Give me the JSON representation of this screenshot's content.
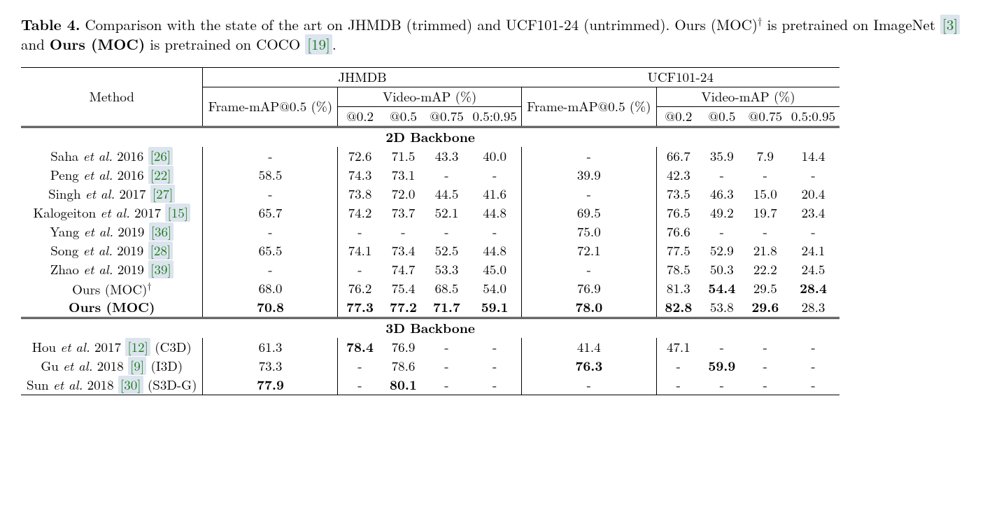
{
  "caption": {
    "table_label": "Table 4.",
    "text_1": " Comparison with the state of the art on JHMDB (trimmed) and UCF101-24 (untrimmed). Ours (MOC)",
    "dagger": "†",
    "text_2": " is pretrained on ImageNet ",
    "cite_1": "[3]",
    "text_3": " and ",
    "ours_bold": "Ours (MOC)",
    "text_4": " is pretrained on COCO ",
    "cite_2": "[19]",
    "text_5": "."
  },
  "headers": {
    "method": "Method",
    "jhmdb": "JHMDB",
    "ucf": "UCF101-24",
    "frame_map": "Frame-mAP@0.5 (%)",
    "video_map": "Video-mAP (%)",
    "c02": "@0.2",
    "c05": "@0.5",
    "c075": "@0.75",
    "c095": "0.5:0.95"
  },
  "sections": {
    "s2d": "2D Backbone",
    "s3d": "3D Backbone"
  },
  "methods": {
    "saha": {
      "pre": "Saha ",
      "etal": "et al.",
      "post": " 2016  ",
      "cite": "[26]"
    },
    "peng": {
      "pre": "Peng ",
      "etal": "et al.",
      "post": " 2016 ",
      "cite": "[22]"
    },
    "singh": {
      "pre": "Singh ",
      "etal": "et al.",
      "post": " 2017 ",
      "cite": "[27]"
    },
    "kalo": {
      "pre": "Kalogeiton ",
      "etal": "et al.",
      "post": " 2017 ",
      "cite": "[15]"
    },
    "yang": {
      "pre": "Yang ",
      "etal": "et al.",
      "post": " 2019 ",
      "cite": "[36]"
    },
    "song": {
      "pre": "Song ",
      "etal": "et al.",
      "post": " 2019 ",
      "cite": "[28]"
    },
    "zhao": {
      "pre": "Zhao ",
      "etal": "et al.",
      "post": " 2019 ",
      "cite": "[39]"
    },
    "ours_d": {
      "pre": "Ours (MOC)",
      "sup": "†"
    },
    "ours": {
      "pre": "Ours (MOC)"
    },
    "hou": {
      "pre": "Hou ",
      "etal": "et al.",
      "post": " 2017 ",
      "cite": "[12]",
      "suffix": " (C3D)"
    },
    "gu": {
      "pre": "Gu ",
      "etal": "et al.",
      "post": " 2018 ",
      "cite": "[9]",
      "suffix": " (I3D)"
    },
    "sun": {
      "pre": "Sun ",
      "etal": "et al.",
      "post": " 2018 ",
      "cite": "[30]",
      "suffix": " (S3D-G)"
    }
  },
  "rows": {
    "saha": {
      "jf": "-",
      "j02": "72.6",
      "j05": "71.5",
      "j075": "43.3",
      "j095": "40.0",
      "uf": "-",
      "u02": "66.7",
      "u05": "35.9",
      "u075": "7.9",
      "u095": "14.4"
    },
    "peng": {
      "jf": "58.5",
      "j02": "74.3",
      "j05": "73.1",
      "j075": "-",
      "j095": "-",
      "uf": "39.9",
      "u02": "42.3",
      "u05": "-",
      "u075": "-",
      "u095": "-"
    },
    "singh": {
      "jf": "-",
      "j02": "73.8",
      "j05": "72.0",
      "j075": "44.5",
      "j095": "41.6",
      "uf": "-",
      "u02": "73.5",
      "u05": "46.3",
      "u075": "15.0",
      "u095": "20.4"
    },
    "kalo": {
      "jf": "65.7",
      "j02": "74.2",
      "j05": "73.7",
      "j075": "52.1",
      "j095": "44.8",
      "uf": "69.5",
      "u02": "76.5",
      "u05": "49.2",
      "u075": "19.7",
      "u095": "23.4"
    },
    "yang": {
      "jf": "-",
      "j02": "-",
      "j05": "-",
      "j075": "-",
      "j095": "-",
      "uf": "75.0",
      "u02": "76.6",
      "u05": "-",
      "u075": "-",
      "u095": "-"
    },
    "song": {
      "jf": "65.5",
      "j02": "74.1",
      "j05": "73.4",
      "j075": "52.5",
      "j095": "44.8",
      "uf": "72.1",
      "u02": "77.5",
      "u05": "52.9",
      "u075": "21.8",
      "u095": "24.1"
    },
    "zhao": {
      "jf": "-",
      "j02": "-",
      "j05": "74.7",
      "j075": "53.3",
      "j095": "45.0",
      "uf": "-",
      "u02": "78.5",
      "u05": "50.3",
      "u075": "22.2",
      "u095": "24.5"
    },
    "ours_d": {
      "jf": "68.0",
      "j02": "76.2",
      "j05": "75.4",
      "j075": "68.5",
      "j095": "54.0",
      "uf": "76.9",
      "u02": "81.3",
      "u05": "54.4",
      "u075": "29.5",
      "u095": "28.4"
    },
    "ours": {
      "jf": "70.8",
      "j02": "77.3",
      "j05": "77.2",
      "j075": "71.7",
      "j095": "59.1",
      "uf": "78.0",
      "u02": "82.8",
      "u05": "53.8",
      "u075": "29.6",
      "u095": "28.3"
    },
    "hou": {
      "jf": "61.3",
      "j02": "78.4",
      "j05": "76.9",
      "j075": "-",
      "j095": "-",
      "uf": "41.4",
      "u02": "47.1",
      "u05": "-",
      "u075": "-",
      "u095": "-"
    },
    "gu": {
      "jf": "73.3",
      "j02": "-",
      "j05": "78.6",
      "j075": "-",
      "j095": "-",
      "uf": "76.3",
      "u02": "-",
      "u05": "59.9",
      "u075": "-",
      "u095": "-"
    },
    "sun": {
      "jf": "77.9",
      "j02": "-",
      "j05": "80.1",
      "j075": "-",
      "j095": "-",
      "uf": "-",
      "u02": "-",
      "u05": "-",
      "u075": "-",
      "u095": "-"
    }
  },
  "bold_map": {
    "ours": {
      "jf": 1,
      "j02": 1,
      "j05": 1,
      "j075": 1,
      "j095": 1,
      "uf": 1,
      "u02": 1,
      "u075": 1
    },
    "ours_d": {
      "u05": 1,
      "u095": 1
    },
    "hou": {
      "j02": 1
    },
    "gu": {
      "uf": 1,
      "u05": 1
    },
    "sun": {
      "jf": 1,
      "j05": 1
    }
  }
}
